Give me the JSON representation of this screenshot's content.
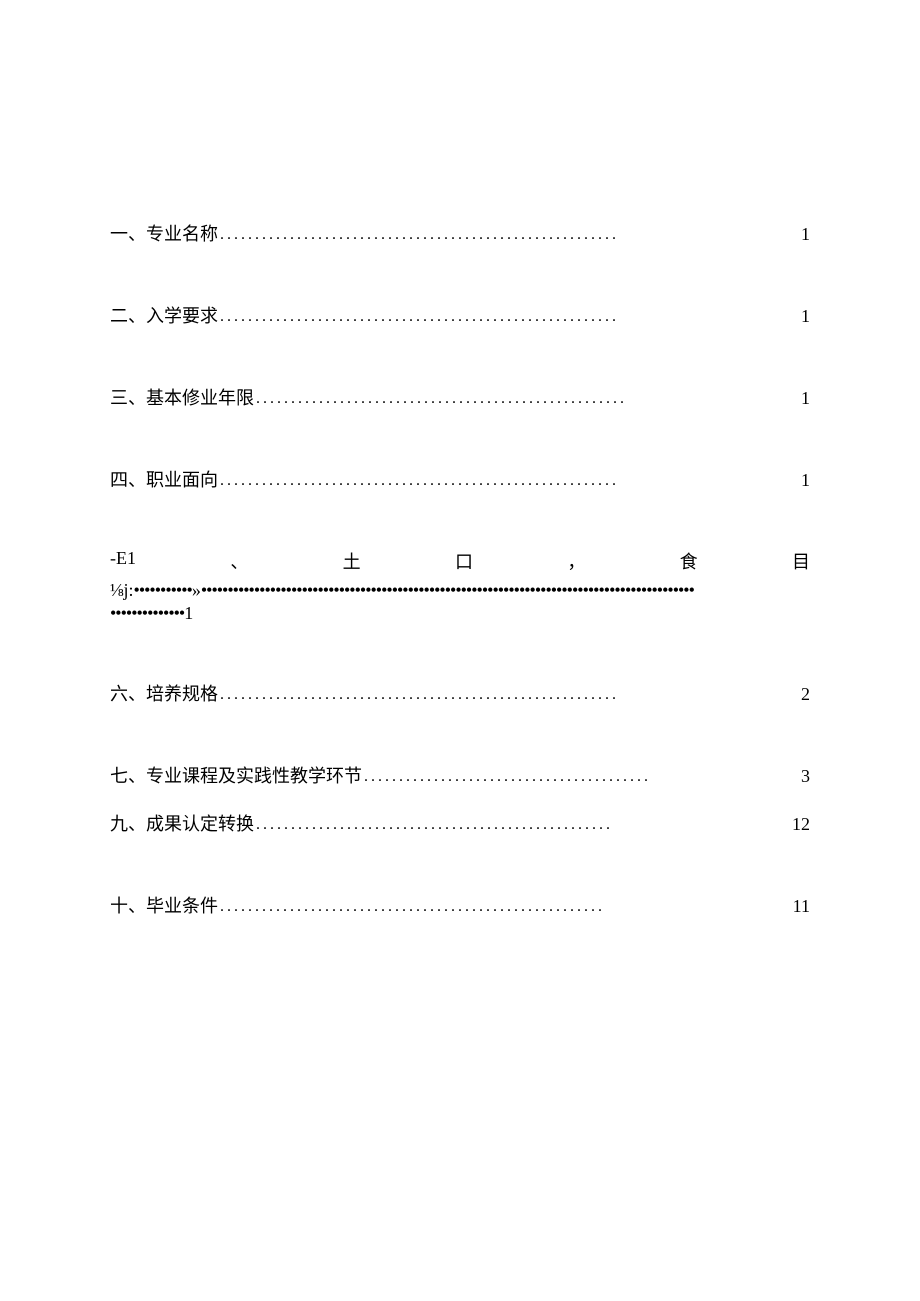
{
  "toc": {
    "entries": [
      {
        "label": "一、专业名称",
        "page": "1"
      },
      {
        "label": "二、入学要求",
        "page": "1"
      },
      {
        "label": "三、基本修业年限",
        "page": "1"
      },
      {
        "label": "四、职业面向",
        "page": "1"
      }
    ],
    "special": {
      "line1_parts": [
        "-E1",
        "、",
        "土",
        "口",
        "，",
        "食",
        "目"
      ],
      "line2_prefix": "⅛j:",
      "line2_mid": "»",
      "line3_suffix": "1"
    },
    "entries2": [
      {
        "label": "六、培养规格",
        "page": "2",
        "tight": false
      },
      {
        "label": "七、专业课程及实践性教学环节",
        "page": "3",
        "tight": true
      },
      {
        "label": "九、成果认定转换",
        "page": "12",
        "tight": false
      },
      {
        "label": "十、毕业条件",
        "page": "11",
        "tight": false
      }
    ]
  },
  "style": {
    "dot_char": ".",
    "bullet_char": "•",
    "font_size": 18,
    "text_color": "#000000",
    "background_color": "#ffffff"
  }
}
